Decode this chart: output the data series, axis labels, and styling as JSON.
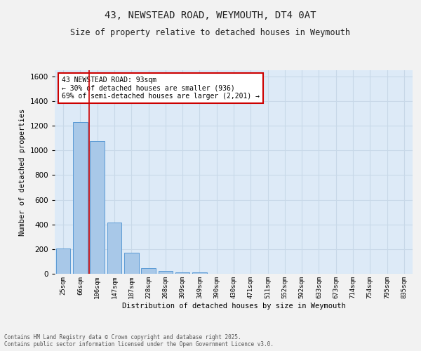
{
  "title_line1": "43, NEWSTEAD ROAD, WEYMOUTH, DT4 0AT",
  "title_line2": "Size of property relative to detached houses in Weymouth",
  "xlabel": "Distribution of detached houses by size in Weymouth",
  "ylabel": "Number of detached properties",
  "categories": [
    "25sqm",
    "66sqm",
    "106sqm",
    "147sqm",
    "187sqm",
    "228sqm",
    "268sqm",
    "309sqm",
    "349sqm",
    "390sqm",
    "430sqm",
    "471sqm",
    "511sqm",
    "552sqm",
    "592sqm",
    "633sqm",
    "673sqm",
    "714sqm",
    "754sqm",
    "795sqm",
    "835sqm"
  ],
  "values": [
    205,
    1230,
    1075,
    415,
    172,
    45,
    25,
    12,
    12,
    0,
    0,
    0,
    0,
    0,
    0,
    0,
    0,
    0,
    0,
    0,
    0
  ],
  "bar_color": "#a8c8e8",
  "bar_edge_color": "#5b9bd5",
  "grid_color": "#c8d8e8",
  "background_color": "#ddeaf7",
  "figure_background": "#f2f2f2",
  "vline_x": 1.5,
  "vline_color": "#cc0000",
  "annotation_text": "43 NEWSTEAD ROAD: 93sqm\n← 30% of detached houses are smaller (936)\n69% of semi-detached houses are larger (2,201) →",
  "annotation_box_color": "#ffffff",
  "annotation_box_edge": "#cc0000",
  "ylim": [
    0,
    1650
  ],
  "yticks": [
    0,
    200,
    400,
    600,
    800,
    1000,
    1200,
    1400,
    1600
  ],
  "footer_line1": "Contains HM Land Registry data © Crown copyright and database right 2025.",
  "footer_line2": "Contains public sector information licensed under the Open Government Licence v3.0."
}
